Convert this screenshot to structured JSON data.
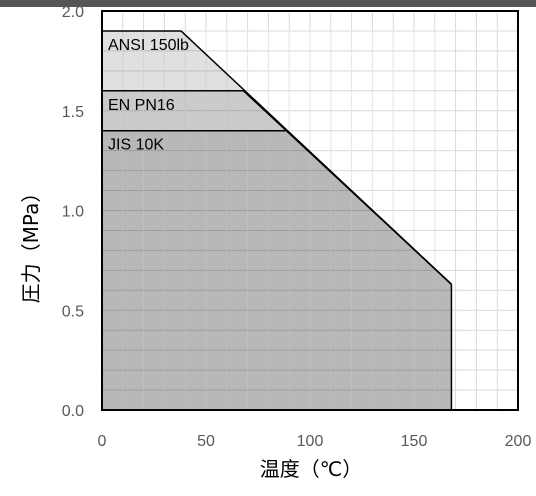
{
  "chart_data": {
    "type": "area",
    "xlabel": "温度（℃）",
    "ylabel": "圧力（MPa）",
    "xlim": [
      0,
      200
    ],
    "ylim": [
      0,
      2.0
    ],
    "x_ticks": [
      0,
      50,
      100,
      150,
      200
    ],
    "y_ticks": [
      0.0,
      0.5,
      1.0,
      1.5,
      2.0
    ],
    "x_tick_labels": [
      "0",
      "50",
      "100",
      "150",
      "200"
    ],
    "y_tick_labels": [
      "0.0",
      "0.5",
      "1.0",
      "1.5",
      "2.0"
    ],
    "grid": true,
    "series": [
      {
        "name": "ANSI 150lb",
        "color": "#e0e0e0",
        "points": [
          [
            0,
            1.9
          ],
          [
            38,
            1.9
          ],
          [
            168,
            0.63
          ]
        ]
      },
      {
        "name": "EN PN16",
        "color": "#cccccc",
        "points": [
          [
            0,
            1.6
          ],
          [
            68,
            1.6
          ],
          [
            168,
            0.63
          ]
        ]
      },
      {
        "name": "JIS 10K",
        "color": "#a6a6a6",
        "points": [
          [
            0,
            1.4
          ],
          [
            89,
            1.4
          ],
          [
            168,
            0.63
          ]
        ]
      }
    ],
    "x_end": 168
  }
}
